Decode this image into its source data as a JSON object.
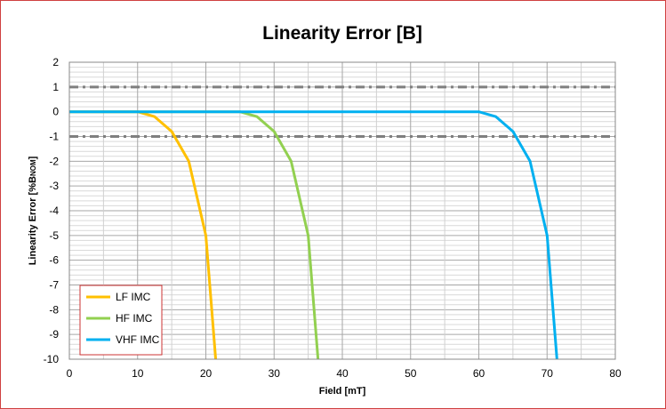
{
  "chart_data": {
    "type": "line",
    "title": "Linearity Error [B]",
    "xlabel": "Field [mT]",
    "ylabel": "Linearity Error   [%B",
    "ylabel_sub": "NOM",
    "ylabel_end": "]",
    "xlim": [
      0,
      80
    ],
    "ylim": [
      -10,
      2
    ],
    "x_ticks": [
      0,
      10,
      20,
      30,
      40,
      50,
      60,
      70,
      80
    ],
    "y_ticks": [
      2,
      1,
      0,
      -1,
      -2,
      -3,
      -4,
      -5,
      -6,
      -7,
      -8,
      -9,
      -10
    ],
    "grid": true,
    "reference_lines": [
      1,
      -1
    ],
    "legend_position": "bottom-left",
    "series": [
      {
        "name": "LF IMC",
        "color": "#FFC000",
        "points": [
          [
            0,
            0
          ],
          [
            10,
            0
          ],
          [
            12.5,
            -0.2
          ],
          [
            15,
            -0.8
          ],
          [
            17.5,
            -2
          ],
          [
            20,
            -5
          ],
          [
            21.5,
            -10.2
          ]
        ]
      },
      {
        "name": "HF IMC",
        "color": "#92D050",
        "points": [
          [
            0,
            0
          ],
          [
            25,
            0
          ],
          [
            27.5,
            -0.2
          ],
          [
            30,
            -0.8
          ],
          [
            32.5,
            -2
          ],
          [
            35,
            -5
          ],
          [
            36.5,
            -10.2
          ]
        ]
      },
      {
        "name": "VHF IMC",
        "color": "#00B0F0",
        "points": [
          [
            0,
            0
          ],
          [
            60,
            0
          ],
          [
            62.5,
            -0.2
          ],
          [
            65,
            -0.8
          ],
          [
            67.5,
            -2
          ],
          [
            70,
            -5
          ],
          [
            71.5,
            -10.2
          ]
        ]
      }
    ]
  }
}
